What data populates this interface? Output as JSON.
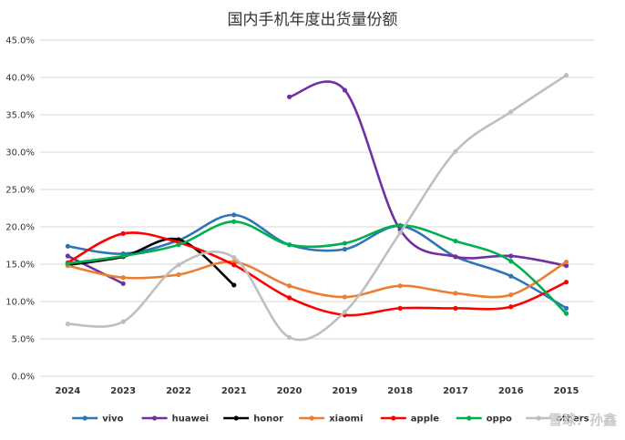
{
  "chart_data": {
    "type": "line",
    "title": "国内手机年度出货量份额",
    "xlabel": "",
    "ylabel": "",
    "categories": [
      "2024",
      "2023",
      "2022",
      "2021",
      "2020",
      "2019",
      "2018",
      "2017",
      "2016",
      "2015"
    ],
    "ylim": [
      0,
      45
    ],
    "yticks": [
      0,
      5,
      10,
      15,
      20,
      25,
      30,
      35,
      40,
      45
    ],
    "ytick_labels": [
      "0.0%",
      "5.0%",
      "10.0%",
      "15.0%",
      "20.0%",
      "25.0%",
      "30.0%",
      "35.0%",
      "40.0%",
      "45.0%"
    ],
    "grid": true,
    "legend_position": "bottom",
    "series": [
      {
        "name": "vivo",
        "color": "#2e75b6",
        "values": [
          17.4,
          16.4,
          18.2,
          21.6,
          17.6,
          17.0,
          20.1,
          16.0,
          13.4,
          9.1
        ]
      },
      {
        "name": "huawei",
        "color": "#7030a0",
        "values": [
          16.1,
          12.4,
          null,
          null,
          37.4,
          38.3,
          19.6,
          16.0,
          16.1,
          14.8
        ]
      },
      {
        "name": "honor",
        "color": "#000000",
        "values": [
          14.9,
          16.0,
          18.3,
          12.2,
          null,
          null,
          null,
          null,
          null,
          null
        ]
      },
      {
        "name": "xiaomi",
        "color": "#ed7d31",
        "values": [
          14.8,
          13.2,
          13.6,
          15.3,
          12.1,
          10.6,
          12.1,
          11.1,
          10.9,
          15.3
        ]
      },
      {
        "name": "apple",
        "color": "#ff0000",
        "values": [
          15.2,
          19.1,
          17.9,
          14.9,
          10.5,
          8.2,
          9.1,
          9.1,
          9.3,
          12.6
        ]
      },
      {
        "name": "oppo",
        "color": "#00b050",
        "values": [
          15.1,
          16.1,
          17.6,
          20.7,
          17.6,
          17.8,
          20.2,
          18.1,
          15.4,
          8.4
        ]
      },
      {
        "name": "others",
        "label": "others",
        "color": "#bfbfbf",
        "values": [
          7.0,
          7.3,
          14.9,
          15.9,
          5.2,
          8.6,
          19.2,
          30.1,
          35.4,
          40.3
        ]
      }
    ]
  },
  "watermark": "雪球：孙鑫"
}
